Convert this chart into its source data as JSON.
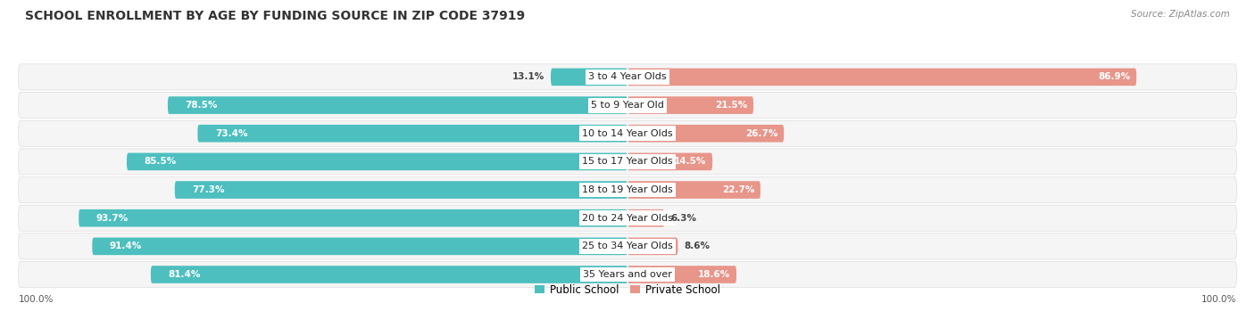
{
  "title": "SCHOOL ENROLLMENT BY AGE BY FUNDING SOURCE IN ZIP CODE 37919",
  "source": "Source: ZipAtlas.com",
  "categories": [
    "3 to 4 Year Olds",
    "5 to 9 Year Old",
    "10 to 14 Year Olds",
    "15 to 17 Year Olds",
    "18 to 19 Year Olds",
    "20 to 24 Year Olds",
    "25 to 34 Year Olds",
    "35 Years and over"
  ],
  "public_values": [
    13.1,
    78.5,
    73.4,
    85.5,
    77.3,
    93.7,
    91.4,
    81.4
  ],
  "private_values": [
    86.9,
    21.5,
    26.7,
    14.5,
    22.7,
    6.3,
    8.6,
    18.6
  ],
  "public_color": "#4DBFBF",
  "private_color": "#E8958A",
  "background_color": "#FFFFFF",
  "row_bg_color": "#F2F2F2",
  "row_bg_color2": "#FAFAFA",
  "title_fontsize": 10,
  "label_fontsize": 8,
  "value_fontsize": 7.5,
  "legend_fontsize": 8.5,
  "axis_label_fontsize": 7.5
}
